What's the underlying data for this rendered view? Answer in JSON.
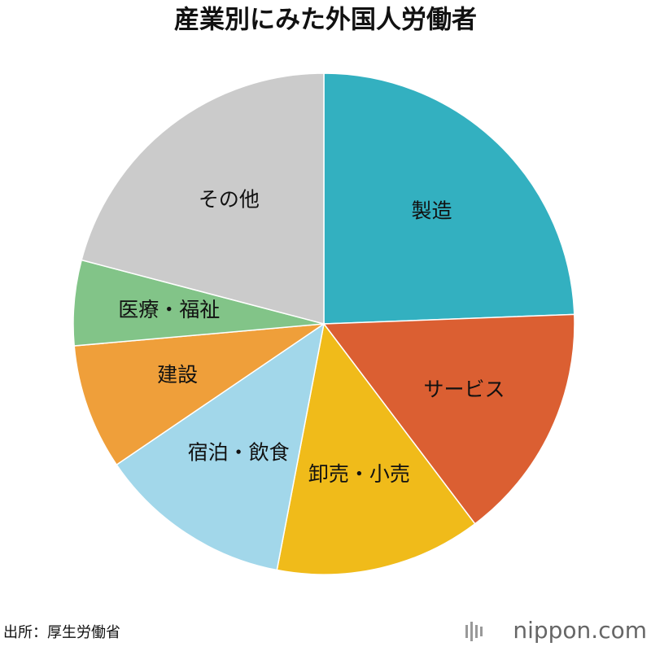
{
  "chart_data": {
    "type": "pie",
    "title": "産業別にみた外国人労働者",
    "categories": [
      "製造",
      "サービス",
      "卸売・小売",
      "宿泊・飲食",
      "建設",
      "医療・福祉",
      "その他"
    ],
    "values": [
      24.4,
      15.3,
      13.3,
      12.5,
      8.1,
      5.5,
      20.9
    ],
    "colors": [
      "#33b0c0",
      "#db5f32",
      "#f0bb1a",
      "#a2d7ea",
      "#ef9f3a",
      "#82c488",
      "#cbcbcb"
    ],
    "source": "出所：厚生労働省",
    "logo": "nippon.com"
  }
}
